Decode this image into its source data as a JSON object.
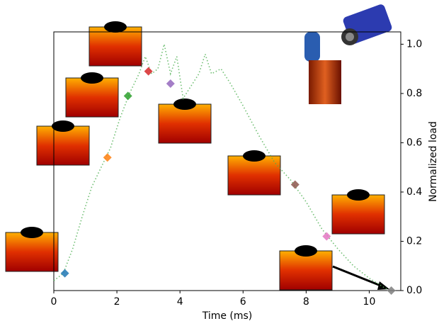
{
  "chart_data": {
    "type": "line",
    "x_label": "Time (ms)",
    "y_label": "Normalized load",
    "xlim": [
      0,
      11
    ],
    "ylim": [
      0,
      1.05
    ],
    "xticks": [
      0,
      2,
      4,
      6,
      8,
      10
    ],
    "yticks": [
      {
        "value": 0,
        "label": "0.0"
      },
      {
        "value": 0.2,
        "label": "0.2"
      },
      {
        "value": 0.4,
        "label": "0.4"
      },
      {
        "value": 0.6,
        "label": "0.6"
      },
      {
        "value": 0.8,
        "label": "0.8"
      },
      {
        "value": 1,
        "label": "1.0"
      }
    ],
    "line": {
      "color": "#4caf50",
      "x": [
        0,
        0.3,
        0.6,
        0.9,
        1.2,
        1.5,
        1.8,
        2.1,
        2.4,
        2.7,
        2.9,
        3.1,
        3.3,
        3.5,
        3.7,
        3.9,
        4.1,
        4.3,
        4.6,
        4.8,
        5.0,
        5.3,
        5.6,
        6.0,
        6.5,
        7.0,
        7.5,
        8.0,
        8.5,
        9.0,
        9.5,
        10.0,
        10.5,
        10.7
      ],
      "values": [
        0.04,
        0.07,
        0.17,
        0.3,
        0.42,
        0.5,
        0.58,
        0.7,
        0.8,
        0.88,
        0.95,
        0.88,
        0.9,
        1.0,
        0.88,
        0.95,
        0.78,
        0.82,
        0.88,
        0.96,
        0.88,
        0.9,
        0.84,
        0.75,
        0.63,
        0.52,
        0.45,
        0.36,
        0.25,
        0.17,
        0.1,
        0.05,
        0.01,
        0.0
      ]
    },
    "markers": {
      "x": [
        0.35,
        1.7,
        2.35,
        3.0,
        3.7,
        7.65,
        8.65,
        10.7
      ],
      "values": [
        0.07,
        0.54,
        0.79,
        0.89,
        0.84,
        0.43,
        0.22,
        0.0
      ],
      "colors": [
        "#1f77b4",
        "#ff7f0e",
        "#2ca02c",
        "#d62728",
        "#9467bd",
        "#8c564b",
        "#e377c2",
        "#7f7f7f"
      ]
    }
  }
}
